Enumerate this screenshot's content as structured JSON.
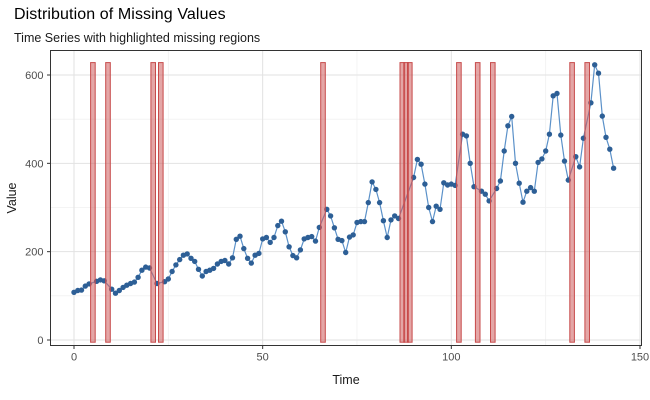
{
  "header": {
    "title": "Distribution of Missing Values",
    "subtitle": "Time Series with highlighted missing regions"
  },
  "chart_data": {
    "type": "line",
    "title": "Distribution of Missing Values",
    "subtitle": "Time Series with highlighted missing regions",
    "xlabel": "Time",
    "ylabel": "Value",
    "xlim": [
      -7,
      151
    ],
    "ylim": [
      -12,
      655
    ],
    "x_ticks": [
      0,
      50,
      100,
      150
    ],
    "y_ticks": [
      0,
      200,
      400,
      600
    ],
    "x_minor_ticks": [
      25,
      75,
      125
    ],
    "y_minor_ticks": [
      100,
      300,
      500
    ],
    "grid": true,
    "legend": false,
    "x_start": 0,
    "x_step": 1,
    "values": [
      108,
      112,
      113,
      122,
      127,
      null,
      133,
      136,
      134,
      null,
      115,
      106,
      112,
      119,
      124,
      128,
      131,
      142,
      158,
      165,
      163,
      null,
      128,
      null,
      132,
      138,
      155,
      170,
      182,
      192,
      195,
      185,
      178,
      160,
      145,
      155,
      158,
      162,
      172,
      178,
      180,
      172,
      186,
      228,
      235,
      207,
      185,
      174,
      192,
      196,
      229,
      232,
      221,
      232,
      259,
      269,
      245,
      211,
      191,
      186,
      204,
      229,
      232,
      234,
      224,
      255,
      null,
      296,
      281,
      254,
      228,
      225,
      198,
      233,
      238,
      266,
      268,
      268,
      311,
      358,
      341,
      311,
      270,
      232,
      272,
      281,
      275,
      null,
      null,
      null,
      368,
      409,
      398,
      353,
      300,
      268,
      303,
      296,
      356,
      351,
      353,
      350,
      null,
      466,
      462,
      400,
      347,
      null,
      337,
      330,
      315,
      null,
      343,
      360,
      428,
      485,
      506,
      400,
      355,
      312,
      337,
      345,
      337,
      402,
      410,
      428,
      466,
      553,
      558,
      464,
      405,
      362,
      null,
      415,
      392,
      457,
      null,
      537,
      623,
      604,
      507,
      459,
      432,
      389
    ],
    "missing_x": [
      5,
      9,
      21,
      23,
      66,
      87,
      88,
      89,
      102,
      107,
      111,
      132,
      136
    ],
    "missing_region": {
      "ymin": -5,
      "ymax": 628
    },
    "colors": {
      "line": "#5b91c9",
      "point": "#2d5f96",
      "missing_fill": "#cd5c5c",
      "missing_stroke": "#c74a4a",
      "grid_major": "#e2e2e2",
      "grid_minor": "#f1f1f1",
      "panel_border": "#333333",
      "tick_mark": "#333333",
      "axis_text": "#4d4d4d",
      "axis_title": "#1a1a1a"
    }
  }
}
